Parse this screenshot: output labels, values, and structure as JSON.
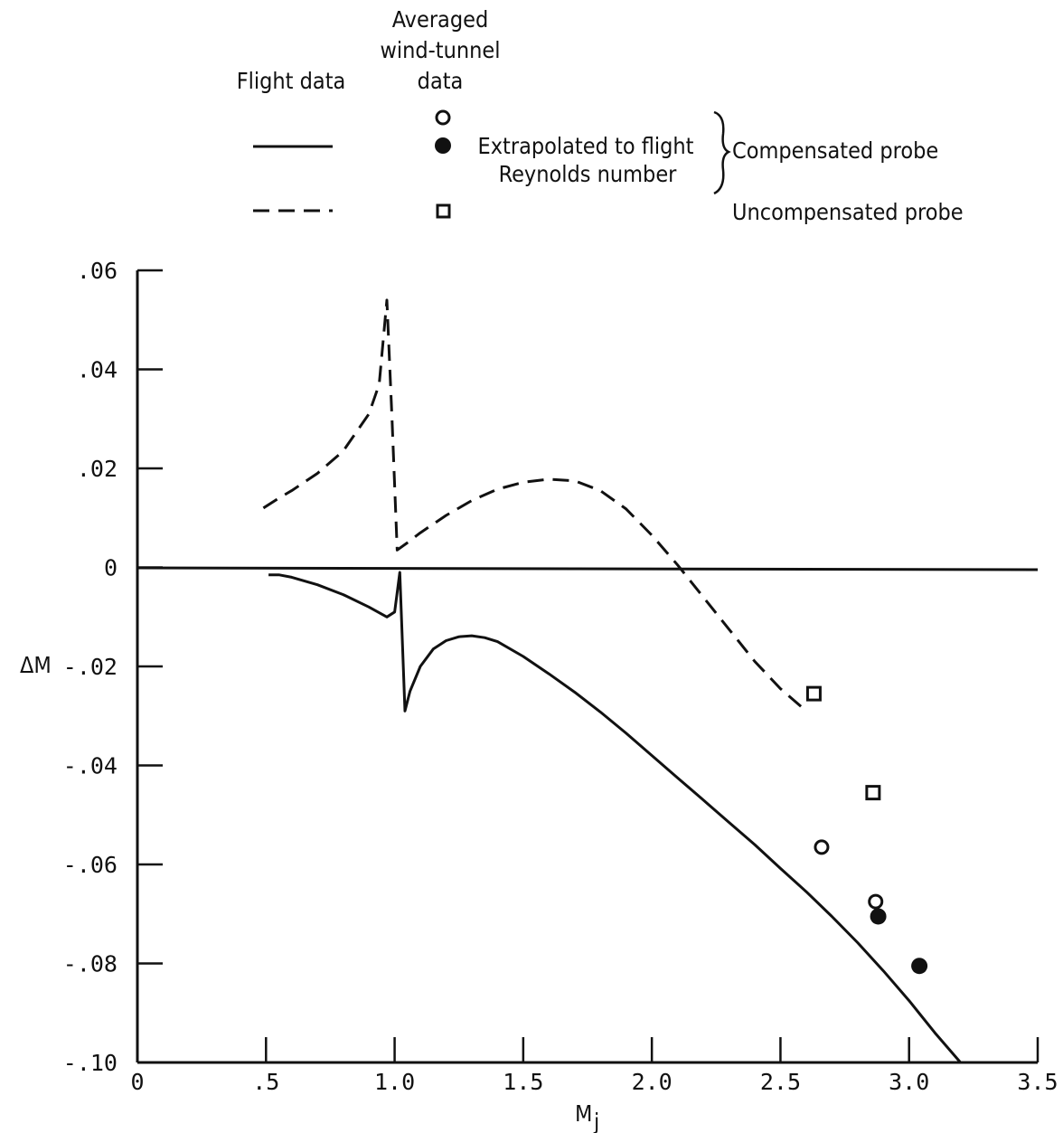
{
  "chart_data": {
    "type": "line",
    "xlabel": "M",
    "xlabel_subscript": "j",
    "ylabel": "ΔM",
    "xlim": [
      0,
      3.5
    ],
    "ylim": [
      -0.1,
      0.06
    ],
    "x_ticks": [
      {
        "value": 0,
        "label": "0"
      },
      {
        "value": 0.5,
        "label": ".5"
      },
      {
        "value": 1.0,
        "label": "1.0"
      },
      {
        "value": 1.5,
        "label": "1.5"
      },
      {
        "value": 2.0,
        "label": "2.0"
      },
      {
        "value": 2.5,
        "label": "2.5"
      },
      {
        "value": 3.0,
        "label": "3.0"
      },
      {
        "value": 3.5,
        "label": "3.5"
      }
    ],
    "y_ticks": [
      {
        "value": 0.06,
        "label": ".06"
      },
      {
        "value": 0.04,
        "label": ".04"
      },
      {
        "value": 0.02,
        "label": ".02"
      },
      {
        "value": 0,
        "label": "0"
      },
      {
        "value": -0.02,
        "label": "-.02"
      },
      {
        "value": -0.04,
        "label": "-.04"
      },
      {
        "value": -0.06,
        "label": "-.06"
      },
      {
        "value": -0.08,
        "label": "-.08"
      },
      {
        "value": -0.1,
        "label": "-.10"
      }
    ],
    "zero_line": true,
    "grid": false,
    "legend": {
      "header_flight": "Flight data",
      "header_tunnel_lines": [
        "Averaged",
        "wind-tunnel",
        "data"
      ],
      "extrapolated_lines": [
        "Extrapolated to flight",
        "Reynolds number"
      ],
      "compensated_label": "Compensated probe",
      "uncompensated_label": "Uncompensated probe"
    },
    "series": [
      {
        "name": "Compensated probe",
        "kind": "line",
        "style": "solid",
        "x": [
          0.51,
          0.55,
          0.6,
          0.7,
          0.8,
          0.9,
          0.97,
          1.0,
          1.02,
          1.04,
          1.06,
          1.1,
          1.15,
          1.2,
          1.25,
          1.3,
          1.35,
          1.4,
          1.5,
          1.6,
          1.7,
          1.8,
          1.9,
          2.0,
          2.1,
          2.2,
          2.3,
          2.4,
          2.5,
          2.6,
          2.7,
          2.8,
          2.9,
          3.0,
          3.1,
          3.2,
          3.22
        ],
        "y": [
          -0.0015,
          -0.0015,
          -0.002,
          -0.0035,
          -0.0055,
          -0.008,
          -0.01,
          -0.009,
          -0.001,
          -0.029,
          -0.025,
          -0.02,
          -0.0165,
          -0.0148,
          -0.014,
          -0.0138,
          -0.0142,
          -0.015,
          -0.018,
          -0.0215,
          -0.0252,
          -0.0292,
          -0.0335,
          -0.038,
          -0.0425,
          -0.047,
          -0.0515,
          -0.056,
          -0.0608,
          -0.0655,
          -0.0705,
          -0.0758,
          -0.0815,
          -0.0875,
          -0.094,
          -0.1,
          -0.1
        ]
      },
      {
        "name": "Uncompensated probe",
        "kind": "line",
        "style": "dashed",
        "x": [
          0.49,
          0.55,
          0.6,
          0.7,
          0.8,
          0.9,
          0.94,
          0.97,
          0.99,
          1.01,
          1.05,
          1.1,
          1.2,
          1.3,
          1.4,
          1.5,
          1.6,
          1.7,
          1.8,
          1.9,
          2.0,
          2.1,
          2.2,
          2.3,
          2.4,
          2.5,
          2.6
        ],
        "y": [
          0.012,
          0.014,
          0.0155,
          0.019,
          0.0235,
          0.031,
          0.037,
          0.054,
          0.03,
          0.0035,
          0.005,
          0.007,
          0.0105,
          0.0135,
          0.0158,
          0.0172,
          0.0178,
          0.0175,
          0.0155,
          0.0118,
          0.0065,
          0.0005,
          -0.006,
          -0.0125,
          -0.019,
          -0.0245,
          -0.029
        ]
      },
      {
        "name": "Averaged wind-tunnel data",
        "kind": "points",
        "marker": "open-circle",
        "x": [
          2.66,
          2.87,
          3.04
        ],
        "y": [
          -0.0565,
          -0.0675,
          -0.0805
        ]
      },
      {
        "name": "Extrapolated to flight Reynolds number",
        "kind": "points",
        "marker": "filled-circle",
        "x": [
          2.88,
          3.04
        ],
        "y": [
          -0.0705,
          -0.0805
        ]
      },
      {
        "name": "Uncompensated probe",
        "kind": "points",
        "marker": "open-square",
        "x": [
          2.63,
          2.86
        ],
        "y": [
          -0.0255,
          -0.0455
        ]
      }
    ]
  }
}
